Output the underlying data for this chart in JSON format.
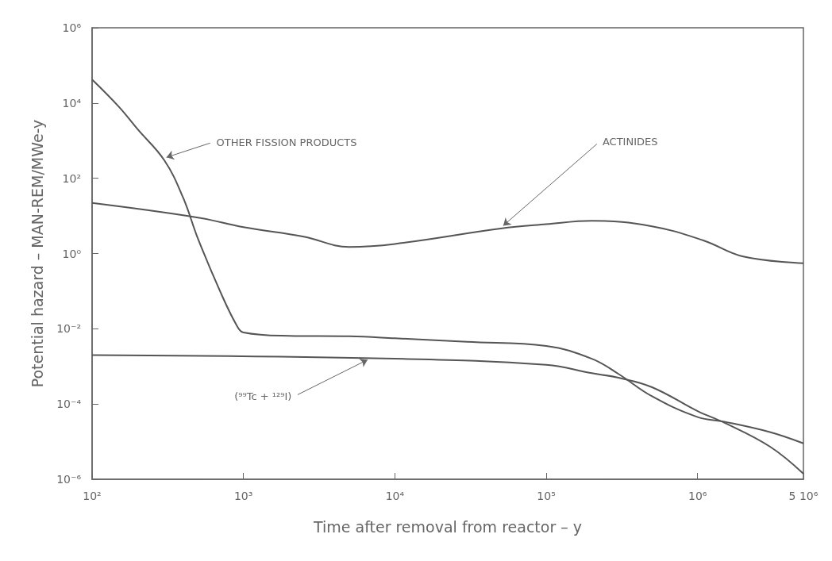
{
  "chart_data": {
    "type": "line",
    "xlabel": "Time after removal from reactor – y",
    "ylabel": "Potential hazard – MAN-REM/MWe-y",
    "log": "xy",
    "grid": false,
    "xlim": [
      100,
      5000000
    ],
    "xticks": [
      {
        "value": 100,
        "label": "10²"
      },
      {
        "value": 1000,
        "label": "10³"
      },
      {
        "value": 10000,
        "label": "10⁴"
      },
      {
        "value": 100000,
        "label": "10⁵"
      },
      {
        "value": 1000000,
        "label": "10⁶"
      },
      {
        "value": 5000000,
        "label": "5 10⁶"
      }
    ],
    "ylim": [
      1e-06,
      1000000
    ],
    "yticks": [
      {
        "value": 1e-06,
        "label": "10⁻⁶"
      },
      {
        "value": 0.0001,
        "label": "10⁻⁴"
      },
      {
        "value": 0.01,
        "label": "10⁻²"
      },
      {
        "value": 1,
        "label": "10⁰"
      },
      {
        "value": 100,
        "label": "10²"
      },
      {
        "value": 10000,
        "label": "10⁴"
      },
      {
        "value": 1000000,
        "label": "10⁶"
      }
    ],
    "series": [
      {
        "color": "#555555",
        "x": [
          100,
          150,
          200,
          300,
          400,
          500,
          700,
          900,
          1000,
          2000,
          5000,
          10000,
          30000,
          100000,
          200000,
          300000,
          500000,
          1000000,
          1500000,
          3000000,
          5000000
        ],
        "values": [
          42000,
          8000,
          2000,
          300,
          30,
          2.5,
          0.1,
          0.0125,
          0.008,
          0.0065,
          0.0063,
          0.0056,
          0.0045,
          0.0035,
          0.0016,
          0.00063,
          0.00016,
          4.5e-05,
          3.4e-05,
          1.8e-05,
          9e-06
        ]
      },
      {
        "color": "#555555",
        "x": [
          100,
          500,
          1000,
          2500,
          5000,
          10000,
          50000,
          100000,
          200000,
          500000,
          1100000,
          2000000,
          5000000
        ],
        "values": [
          22,
          9,
          5,
          2.8,
          1.5,
          1.8,
          4.6,
          6,
          7.4,
          5.3,
          2.2,
          0.83,
          0.55
        ]
      },
      {
        "color": "#555555",
        "x": [
          100,
          10000,
          100000,
          200000,
          300000,
          500000,
          1000000,
          1500000,
          3000000,
          5000000
        ],
        "values": [
          0.002,
          0.0016,
          0.0011,
          0.00066,
          0.0005,
          0.00028,
          6.5e-05,
          3.2e-05,
          7.4e-06,
          1.4e-06
        ]
      }
    ],
    "annotations": [
      {
        "text": "OTHER FISSION PRODUCTS",
        "x": 310,
        "y": 360
      },
      {
        "text": "ACTINIDES",
        "x": 52000,
        "y": 5.5
      },
      {
        "text": "(⁹⁹Tc + ¹²⁹I)",
        "x": 6600,
        "y": 0.0015
      }
    ]
  }
}
